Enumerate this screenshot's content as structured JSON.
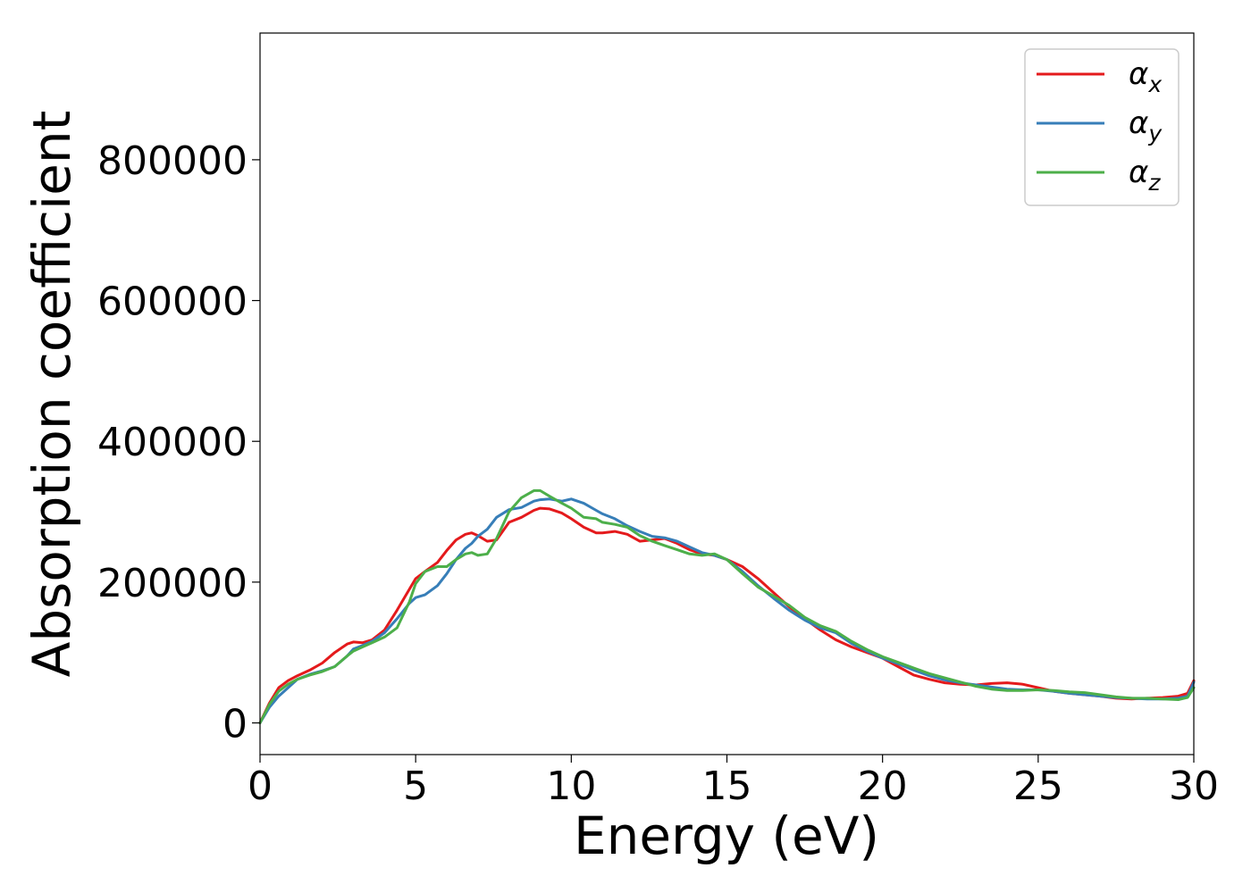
{
  "chart_data": {
    "type": "line",
    "title": "",
    "xlabel": "Energy (eV)",
    "ylabel": "Absorption coefficient",
    "xlim": [
      0,
      30
    ],
    "ylim": [
      -45000,
      980000
    ],
    "xticks": [
      0,
      5,
      10,
      15,
      20,
      25,
      30
    ],
    "yticks": [
      0,
      200000,
      400000,
      600000,
      800000
    ],
    "xtick_labels": [
      "0",
      "5",
      "10",
      "15",
      "20",
      "25",
      "30"
    ],
    "ytick_labels": [
      "0",
      "200000",
      "400000",
      "600000",
      "800000"
    ],
    "grid": false,
    "legend_position": "top-right",
    "series": [
      {
        "name": "αx",
        "symbol": "α",
        "subscript": "x",
        "color": "#e41a1c",
        "x": [
          0,
          0.3,
          0.6,
          0.9,
          1.2,
          1.6,
          2.0,
          2.4,
          2.8,
          3.0,
          3.3,
          3.6,
          4.0,
          4.4,
          4.8,
          5.0,
          5.3,
          5.7,
          6.0,
          6.3,
          6.6,
          6.8,
          7.0,
          7.3,
          7.6,
          8.0,
          8.4,
          8.8,
          9.0,
          9.3,
          9.7,
          10.0,
          10.4,
          10.8,
          11.0,
          11.4,
          11.8,
          12.2,
          12.6,
          13.0,
          13.4,
          13.8,
          14.2,
          14.6,
          15.0,
          15.5,
          16.0,
          16.5,
          17.0,
          17.5,
          18.0,
          18.5,
          19.0,
          19.5,
          20.0,
          20.5,
          21.0,
          21.5,
          22.0,
          22.5,
          23.0,
          23.5,
          24.0,
          24.5,
          25.0,
          25.5,
          26.0,
          26.5,
          27.0,
          27.5,
          28.0,
          28.5,
          29.0,
          29.5,
          29.8,
          30.0
        ],
        "y": [
          0,
          28000,
          50000,
          60000,
          67000,
          75000,
          85000,
          100000,
          112000,
          115000,
          114000,
          118000,
          132000,
          160000,
          190000,
          205000,
          215000,
          228000,
          245000,
          260000,
          268000,
          270000,
          266000,
          258000,
          260000,
          285000,
          292000,
          302000,
          305000,
          304000,
          298000,
          290000,
          278000,
          270000,
          270000,
          272000,
          268000,
          258000,
          260000,
          262000,
          255000,
          246000,
          240000,
          238000,
          232000,
          222000,
          205000,
          185000,
          165000,
          148000,
          132000,
          118000,
          108000,
          100000,
          92000,
          80000,
          68000,
          62000,
          57000,
          55000,
          54000,
          56000,
          57000,
          55000,
          50000,
          45000,
          42000,
          40000,
          38000,
          35000,
          34000,
          35000,
          36000,
          38000,
          42000,
          60000
        ]
      },
      {
        "name": "αy",
        "symbol": "α",
        "subscript": "y",
        "color": "#377eb8",
        "x": [
          0,
          0.3,
          0.6,
          0.9,
          1.2,
          1.6,
          2.0,
          2.4,
          2.8,
          3.0,
          3.3,
          3.6,
          4.0,
          4.4,
          4.8,
          5.0,
          5.3,
          5.7,
          6.0,
          6.3,
          6.6,
          6.8,
          7.0,
          7.3,
          7.6,
          8.0,
          8.4,
          8.8,
          9.0,
          9.3,
          9.7,
          10.0,
          10.4,
          10.8,
          11.0,
          11.4,
          11.8,
          12.2,
          12.6,
          13.0,
          13.4,
          13.8,
          14.2,
          14.6,
          15.0,
          15.5,
          16.0,
          16.5,
          17.0,
          17.5,
          18.0,
          18.5,
          19.0,
          19.5,
          20.0,
          20.5,
          21.0,
          21.5,
          22.0,
          22.5,
          23.0,
          23.5,
          24.0,
          24.5,
          25.0,
          25.5,
          26.0,
          26.5,
          27.0,
          27.5,
          28.0,
          28.5,
          29.0,
          29.5,
          29.8,
          30.0
        ],
        "y": [
          0,
          22000,
          38000,
          50000,
          62000,
          69000,
          74000,
          80000,
          95000,
          105000,
          110000,
          116000,
          128000,
          148000,
          170000,
          178000,
          182000,
          195000,
          212000,
          232000,
          248000,
          255000,
          265000,
          275000,
          292000,
          303000,
          306000,
          315000,
          317000,
          318000,
          315000,
          318000,
          312000,
          302000,
          297000,
          290000,
          280000,
          272000,
          265000,
          263000,
          258000,
          250000,
          242000,
          238000,
          232000,
          215000,
          195000,
          177000,
          160000,
          146000,
          135000,
          128000,
          113000,
          102000,
          92000,
          84000,
          75000,
          67000,
          61000,
          57000,
          54000,
          51000,
          48000,
          47000,
          47000,
          45000,
          42000,
          40000,
          38000,
          36000,
          35000,
          34000,
          34000,
          35000,
          38000,
          58000
        ]
      },
      {
        "name": "αz",
        "symbol": "α",
        "subscript": "z",
        "color": "#4daf4a",
        "x": [
          0,
          0.3,
          0.6,
          0.9,
          1.2,
          1.6,
          2.0,
          2.4,
          2.8,
          3.0,
          3.3,
          3.6,
          4.0,
          4.4,
          4.8,
          5.0,
          5.3,
          5.7,
          6.0,
          6.3,
          6.6,
          6.8,
          7.0,
          7.3,
          7.6,
          8.0,
          8.4,
          8.8,
          9.0,
          9.3,
          9.7,
          10.0,
          10.4,
          10.8,
          11.0,
          11.4,
          11.8,
          12.2,
          12.6,
          13.0,
          13.4,
          13.8,
          14.2,
          14.6,
          15.0,
          15.5,
          16.0,
          16.5,
          17.0,
          17.5,
          18.0,
          18.5,
          19.0,
          19.5,
          20.0,
          20.5,
          21.0,
          21.5,
          22.0,
          22.5,
          23.0,
          23.5,
          24.0,
          24.5,
          25.0,
          25.5,
          26.0,
          26.5,
          27.0,
          27.5,
          28.0,
          28.5,
          29.0,
          29.5,
          29.8,
          30.0
        ],
        "y": [
          0,
          26000,
          45000,
          55000,
          62000,
          68000,
          73000,
          80000,
          95000,
          102000,
          108000,
          114000,
          122000,
          135000,
          172000,
          198000,
          215000,
          222000,
          222000,
          232000,
          240000,
          242000,
          238000,
          240000,
          262000,
          300000,
          320000,
          330000,
          330000,
          322000,
          312000,
          305000,
          292000,
          290000,
          285000,
          282000,
          278000,
          266000,
          258000,
          252000,
          246000,
          240000,
          238000,
          240000,
          232000,
          212000,
          193000,
          180000,
          167000,
          150000,
          138000,
          130000,
          116000,
          104000,
          94000,
          86000,
          78000,
          70000,
          64000,
          58000,
          52000,
          48000,
          46000,
          46000,
          47000,
          46000,
          44000,
          43000,
          40000,
          37000,
          35000,
          35000,
          34000,
          33000,
          36000,
          50000
        ]
      }
    ]
  }
}
